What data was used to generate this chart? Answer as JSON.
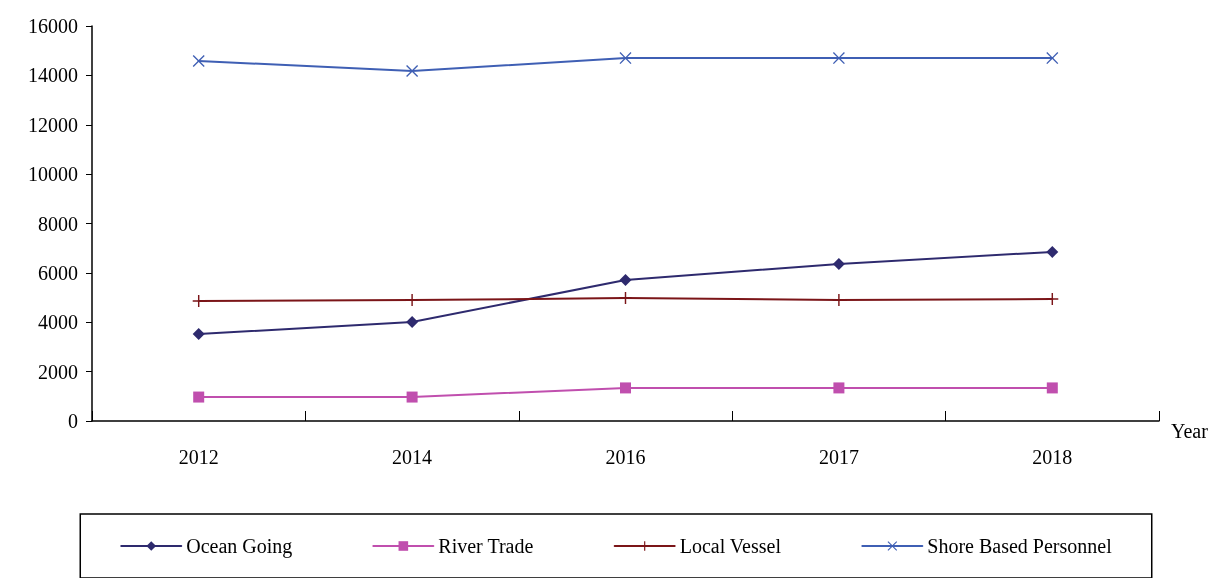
{
  "chart_data": {
    "type": "line",
    "xlabel": "Year",
    "categories": [
      "2012",
      "2014",
      "2016",
      "2017",
      "2018"
    ],
    "series": [
      {
        "name": "Ocean Going",
        "color": "#2e2a6e",
        "marker": "diamond",
        "values": [
          3520,
          4010,
          5710,
          6360,
          6850
        ]
      },
      {
        "name": "River Trade",
        "color": "#c04fae",
        "marker": "square",
        "values": [
          970,
          970,
          1340,
          1340,
          1340
        ]
      },
      {
        "name": "Local Vessel",
        "color": "#7b1518",
        "marker": "plus",
        "values": [
          4860,
          4900,
          4980,
          4900,
          4940
        ]
      },
      {
        "name": "Shore Based Personnel",
        "color": "#3f5fb4",
        "marker": "cross",
        "values": [
          14580,
          14180,
          14700,
          14700,
          14700
        ]
      }
    ],
    "ylim": [
      0,
      16000
    ],
    "yticks": [
      0,
      2000,
      4000,
      6000,
      8000,
      10000,
      12000,
      14000,
      16000
    ],
    "grid": false,
    "legend": "bottom",
    "line_style": "solid"
  }
}
